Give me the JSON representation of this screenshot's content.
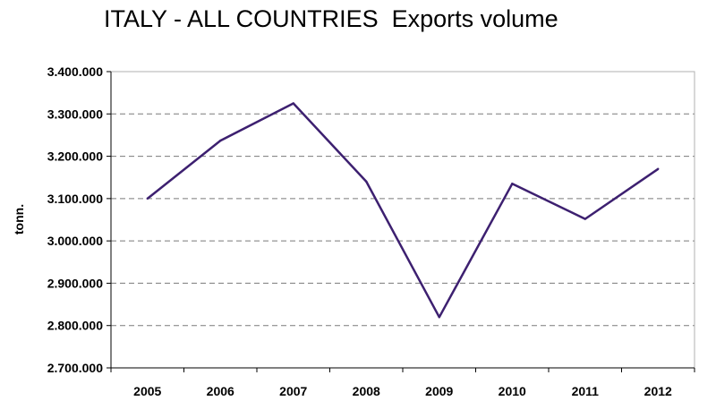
{
  "chart_data": {
    "type": "line",
    "title": "ITALY - ALL COUNTRIES  Exports volume",
    "xlabel": "",
    "ylabel": "tonn.",
    "categories": [
      "2005",
      "2006",
      "2007",
      "2008",
      "2009",
      "2010",
      "2011",
      "2012"
    ],
    "series": [
      {
        "values": [
          3100000,
          3237000,
          3325000,
          3140000,
          2820000,
          3135000,
          3052000,
          3170000
        ],
        "color": "#3d2070"
      }
    ],
    "ylim": [
      2700000,
      3400000
    ],
    "y_ticks": [
      2700000,
      2800000,
      2900000,
      3000000,
      3100000,
      3200000,
      3300000,
      3400000
    ],
    "y_tick_labels": [
      "2.700.000",
      "2.800.000",
      "2.900.000",
      "3.000.000",
      "3.100.000",
      "3.200.000",
      "3.300.000",
      "3.400.000"
    ],
    "grid": true,
    "grid_style": "dashed",
    "legend": "none"
  }
}
